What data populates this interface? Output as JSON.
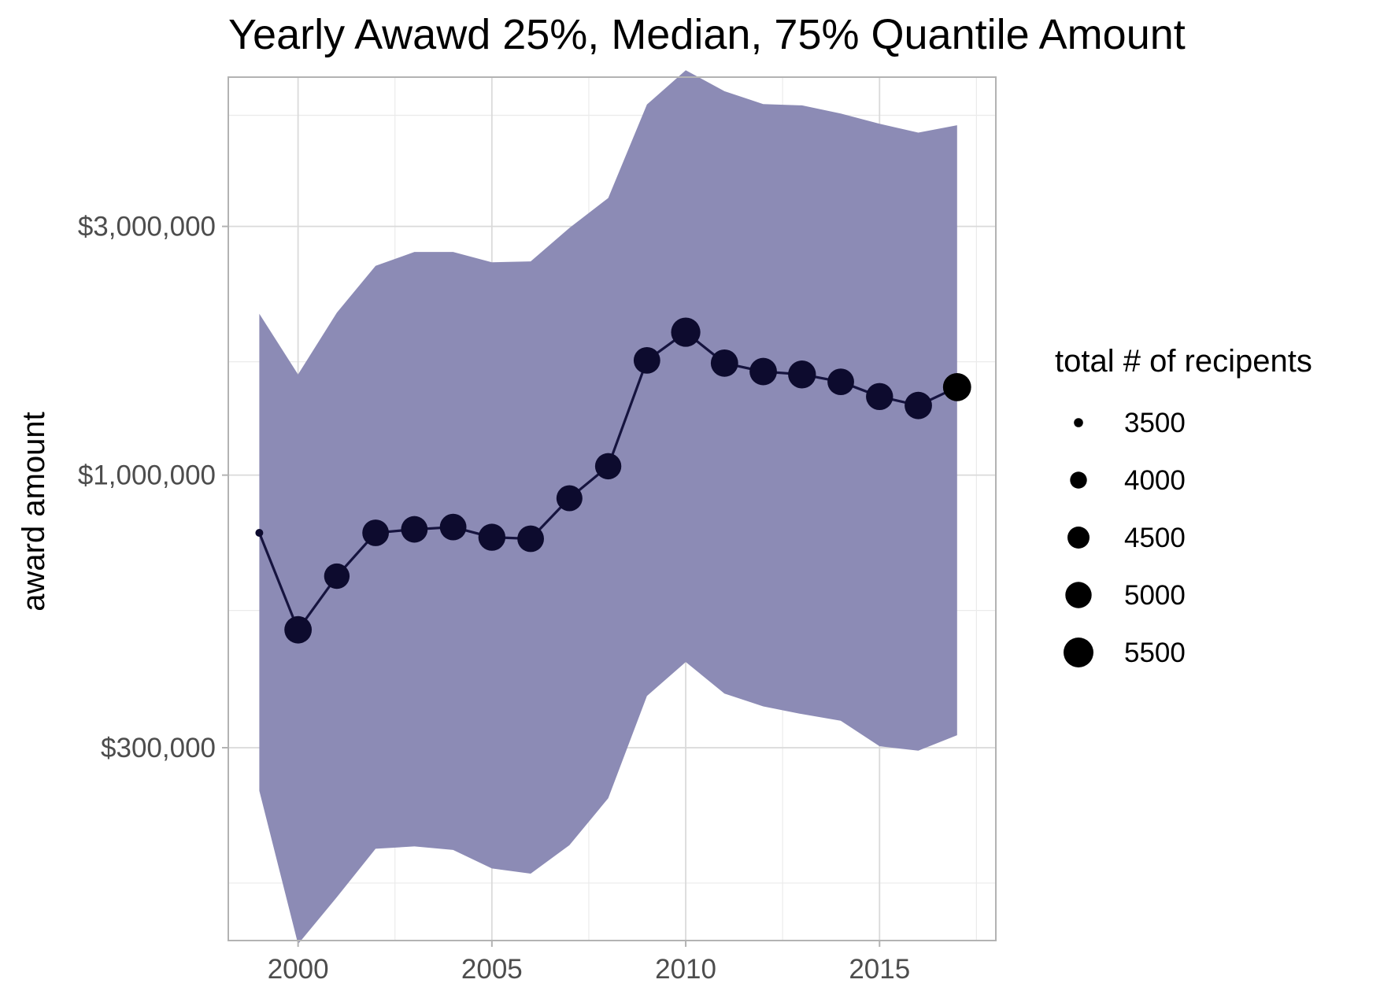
{
  "chart_data": {
    "type": "line",
    "title": "Yearly Awawd 25%, Median, 75% Quantile Amount",
    "xlabel": "",
    "ylabel": "award amount",
    "y_scale": "log",
    "xlim": [
      1998.2,
      2018.0
    ],
    "ylim": [
      128000,
      5800000
    ],
    "x_ticks": [
      2000,
      2005,
      2010,
      2015
    ],
    "x_tick_labels": [
      "2000",
      "2005",
      "2010",
      "2015"
    ],
    "y_ticks": [
      300000,
      1000000,
      3000000
    ],
    "y_tick_labels": [
      "$300,000",
      "$1,000,000",
      "$3,000,000"
    ],
    "y_minor_ticks": [
      165000,
      550000,
      1650000,
      4900000
    ],
    "grid": true,
    "x": [
      1999,
      2000,
      2001,
      2002,
      2003,
      2004,
      2005,
      2006,
      2007,
      2008,
      2009,
      2010,
      2011,
      2012,
      2013,
      2014,
      2015,
      2016,
      2017
    ],
    "series": [
      {
        "name": "median",
        "values": [
          775000,
          505000,
          640000,
          775000,
          787000,
          795000,
          760000,
          755000,
          903000,
          1040000,
          1660000,
          1880000,
          1640000,
          1580000,
          1560000,
          1510000,
          1415000,
          1360000,
          1475000
        ],
        "recipients": [
          3450,
          5150,
          4900,
          5050,
          5050,
          5050,
          5100,
          5050,
          4950,
          5000,
          5050,
          5400,
          5150,
          5150,
          5200,
          5050,
          5100,
          5150,
          5250
        ]
      },
      {
        "name": "q25",
        "values": [
          248000,
          126000,
          155000,
          192000,
          194000,
          191000,
          176000,
          172000,
          195000,
          240000,
          377000,
          438000,
          381000,
          360000,
          348000,
          338000,
          302000,
          296000,
          317000
        ]
      },
      {
        "name": "q75",
        "values": [
          2040000,
          1560000,
          2050000,
          2520000,
          2680000,
          2680000,
          2560000,
          2570000,
          2980000,
          3400000,
          5140000,
          5980000,
          5450000,
          5150000,
          5120000,
          4940000,
          4720000,
          4540000,
          4690000
        ]
      }
    ],
    "band_color": "#8c8bb5",
    "line_color": "#16143f",
    "point_color": "#0d0b2e",
    "legend": {
      "title": "total # of recipents",
      "placement": "right",
      "entries": [
        {
          "label": "3500",
          "value": 3500
        },
        {
          "label": "4000",
          "value": 4000
        },
        {
          "label": "4500",
          "value": 4500
        },
        {
          "label": "5000",
          "value": 5000
        },
        {
          "label": "5500",
          "value": 5500
        }
      ]
    }
  }
}
